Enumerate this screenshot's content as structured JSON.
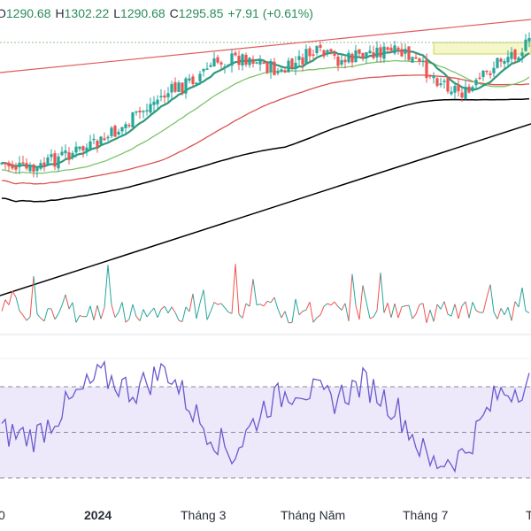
{
  "ohlc_header": {
    "open_label": "O",
    "open": "1290.68",
    "high_label": "H",
    "high": "1302.22",
    "low_label": "L",
    "low": "1290.68",
    "close_label": "C",
    "close": "1295.85",
    "change": "+7.91 (+0.61%)"
  },
  "x_axis_labels": [
    "0",
    "2024",
    "Tháng 3",
    "Tháng Năm",
    "Tháng 7",
    "T"
  ],
  "colors": {
    "up": "#26a69a",
    "down": "#ef5350",
    "ema_short": "#2e9a7a",
    "ma_medium": "#7cc46a",
    "ma_long_red": "#d9534f",
    "ma_very_long": "#000000",
    "trendline_upper": "#e05a5a",
    "trendline_lower": "#000000",
    "rsi_line": "#6a5acd",
    "rsi_band": "#ede9fb",
    "zone_fill": "#f5f7c8",
    "zone_border": "#c9d65a"
  },
  "chart_data": {
    "type": "candlestick",
    "overlays": [
      "short-term moving average",
      "medium-term moving average",
      "long-term moving average (red)",
      "very long-term moving average (black)",
      "upper trendline",
      "lower trendline",
      "resistance zone"
    ],
    "last_candle": {
      "open": 1290.68,
      "high": 1302.22,
      "low": 1290.68,
      "close": 1295.85,
      "change": 7.91,
      "change_pct": 0.61
    },
    "price_path_keypoints": [
      0.42,
      0.38,
      0.46,
      0.5,
      0.6,
      0.72,
      0.8,
      0.9,
      0.92,
      0.84,
      0.94,
      0.9,
      0.95,
      0.93,
      0.82,
      0.74,
      0.9,
      0.98
    ],
    "volume_panel": true,
    "rsi_panel": {
      "levels": [
        70,
        50,
        30
      ],
      "band": [
        30,
        70
      ],
      "path_keypoints": [
        50,
        48,
        62,
        75,
        68,
        78,
        55,
        40,
        62,
        70,
        64,
        72,
        60,
        36,
        40,
        66,
        72
      ]
    }
  }
}
